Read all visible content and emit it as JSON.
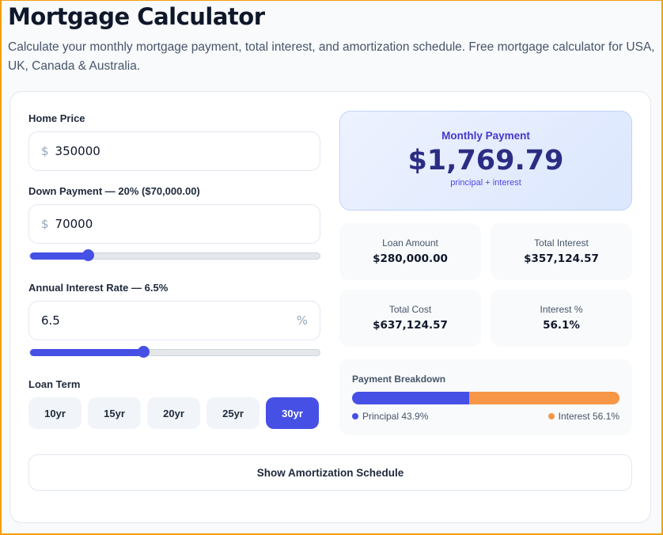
{
  "header": {
    "title": "Mortgage Calculator",
    "subtitle": "Calculate your monthly mortgage payment, total interest, and amortization schedule. Free mortgage calculator for USA, UK, Canada & Australia."
  },
  "form": {
    "home_price": {
      "label": "Home Price",
      "prefix": "$",
      "value": "350000"
    },
    "down_payment": {
      "label": "Down Payment — 20% ($70,000.00)",
      "prefix": "$",
      "value": "70000",
      "slider_fraction": 0.2
    },
    "interest_rate": {
      "label": "Annual Interest Rate — 6.5%",
      "value": "6.5",
      "suffix": "%",
      "slider_fraction": 0.39
    },
    "loan_term": {
      "label": "Loan Term",
      "options": [
        "10yr",
        "15yr",
        "20yr",
        "25yr",
        "30yr"
      ],
      "selected": "30yr"
    }
  },
  "results": {
    "monthly": {
      "label": "Monthly Payment",
      "value": "$1,769.79",
      "note": "principal + interest"
    },
    "stats": [
      {
        "label": "Loan Amount",
        "value": "$280,000.00"
      },
      {
        "label": "Total Interest",
        "value": "$357,124.57"
      },
      {
        "label": "Total Cost",
        "value": "$637,124.57"
      },
      {
        "label": "Interest %",
        "value": "56.1%"
      }
    ],
    "breakdown": {
      "title": "Payment Breakdown",
      "principal_pct": 43.9,
      "interest_pct": 56.1,
      "principal_label": "Principal 43.9%",
      "interest_label": "Interest 56.1%",
      "principal_color": "#4650e5",
      "interest_color": "#f79646"
    }
  },
  "amortization_button": "Show Amortization Schedule"
}
